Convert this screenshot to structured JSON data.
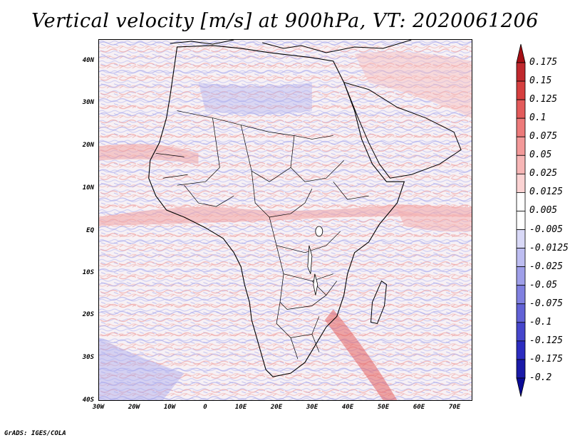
{
  "title": "Vertical velocity [m/s] at 900hPa, VT: 2020061206",
  "footer": "GrADS: IGES/COLA",
  "axes": {
    "y_labels": [
      "40N",
      "30N",
      "20N",
      "10N",
      "EQ",
      "10S",
      "20S",
      "30S",
      "40S"
    ],
    "x_labels": [
      "30W",
      "20W",
      "10W",
      "0",
      "10E",
      "20E",
      "30E",
      "40E",
      "50E",
      "60E",
      "70E"
    ]
  },
  "colorbar": {
    "labels": [
      "0.175",
      "0.15",
      "0.125",
      "0.1",
      "0.075",
      "0.05",
      "0.025",
      "0.0125",
      "0.005",
      "-0.005",
      "-0.0125",
      "-0.025",
      "-0.05",
      "-0.075",
      "-0.1",
      "-0.125",
      "-0.175",
      "-0.2"
    ],
    "colors": [
      "#a50f15",
      "#c0282d",
      "#d63f3f",
      "#e35b5b",
      "#ed7a7a",
      "#f39999",
      "#f7b6b6",
      "#fbd3d3",
      "#ffffff",
      "#ffffff",
      "#d9d9f7",
      "#bdbdf1",
      "#9f9fe9",
      "#8080e0",
      "#6262d6",
      "#4646cc",
      "#2c2cc0",
      "#1a1aa8",
      "#0a0a96"
    ]
  }
}
